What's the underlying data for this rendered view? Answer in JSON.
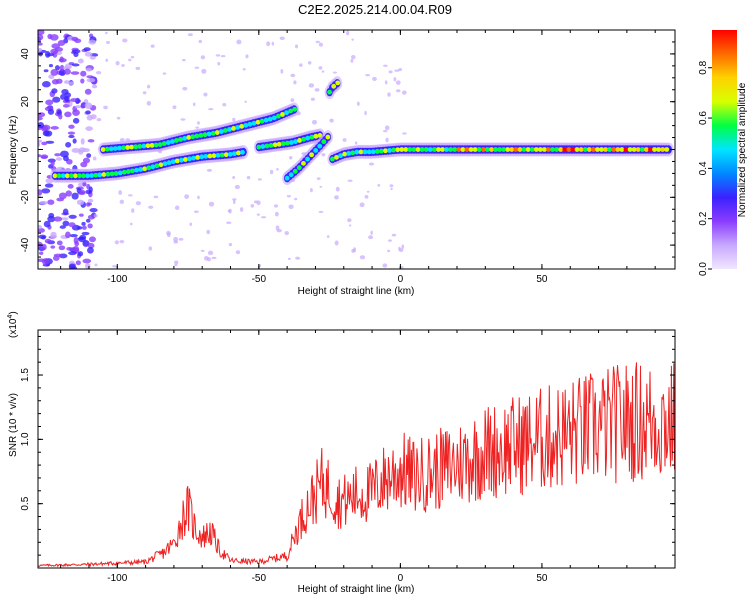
{
  "title": "C2E2.2025.214.00.04.R09",
  "colors": {
    "snr_line": "#ee2222",
    "axis": "#000000",
    "colormap": [
      "#f0e6ff",
      "#c8a8ff",
      "#8a3cff",
      "#3a22ff",
      "#0088ff",
      "#00e5ff",
      "#00ff44",
      "#d8ff00",
      "#ffd200",
      "#ff6a00",
      "#ff0000"
    ]
  },
  "chart_data": [
    {
      "type": "heatmap",
      "xlabel": "Height of straight line (km)",
      "ylabel": "Frequency (Hz)",
      "xlim": [
        -128,
        97
      ],
      "ylim": [
        -50,
        50
      ],
      "xticks": [
        "-100",
        "-50",
        "0",
        "50"
      ],
      "yticks": [
        "-40",
        "-20",
        "0",
        "20",
        "40"
      ],
      "colorbar": {
        "label": "Normalized spectral amplitude",
        "range": [
          0,
          0.95
        ],
        "ticks": [
          "0.0",
          "0.2",
          "0.4",
          "0.6",
          "0.8"
        ]
      },
      "ridges": [
        {
          "x": [
            -122,
            -110,
            -100,
            -90,
            -80,
            -70,
            -60,
            -55
          ],
          "y": [
            -11,
            -11,
            -10,
            -8,
            -5,
            -3,
            -2,
            -1
          ]
        },
        {
          "x": [
            -105,
            -95,
            -85,
            -75,
            -65,
            -55,
            -45,
            -37
          ],
          "y": [
            0,
            1,
            2,
            5,
            7,
            10,
            13,
            17
          ]
        },
        {
          "x": [
            -50,
            -44,
            -38,
            -32,
            -28
          ],
          "y": [
            1,
            2,
            3,
            5,
            6
          ]
        },
        {
          "x": [
            -40,
            -36,
            -32,
            -28,
            -25
          ],
          "y": [
            -12,
            -8,
            -3,
            2,
            6
          ]
        },
        {
          "x": [
            -25,
            -24,
            -22
          ],
          "y": [
            24,
            26,
            28
          ]
        },
        {
          "x": [
            -24,
            -20,
            -15,
            -10,
            -5,
            0,
            20,
            40,
            60,
            80,
            95
          ],
          "y": [
            -4,
            -2,
            -1,
            -1,
            -0.5,
            0,
            0,
            0,
            0,
            0,
            0
          ]
        }
      ]
    },
    {
      "type": "line",
      "xlabel": "Height of straight line (km)",
      "ylabel": "SNR (10 * v/v)",
      "multiplier": "(x10",
      "multiplier_exp": "4",
      "multiplier_close": ")",
      "xlim": [
        -128,
        97
      ],
      "ylim": [
        0,
        1.85
      ],
      "xticks": [
        "-100",
        "-50",
        "0",
        "50"
      ],
      "yticks": [
        "0.5",
        "1.0",
        "1.5"
      ],
      "series": [
        {
          "x": [
            -128,
            -110,
            -90,
            -84,
            -80,
            -77,
            -75,
            -73,
            -70,
            -67,
            -64,
            -60,
            -50,
            -40,
            -36,
            -33,
            -30,
            -28,
            -25,
            -22,
            -19,
            -16,
            -13,
            -10,
            -7,
            -4,
            0,
            5,
            10,
            20,
            30,
            40,
            50,
            60,
            70,
            80,
            90,
            97
          ],
          "y": [
            0.02,
            0.03,
            0.05,
            0.12,
            0.2,
            0.4,
            0.5,
            0.35,
            0.25,
            0.3,
            0.15,
            0.06,
            0.05,
            0.1,
            0.35,
            0.5,
            0.6,
            0.7,
            0.65,
            0.55,
            0.55,
            0.6,
            0.6,
            0.62,
            0.7,
            0.75,
            0.8,
            0.75,
            0.78,
            0.85,
            0.95,
            1.0,
            1.05,
            1.1,
            1.15,
            1.2,
            1.2,
            1.2
          ]
        }
      ]
    }
  ]
}
